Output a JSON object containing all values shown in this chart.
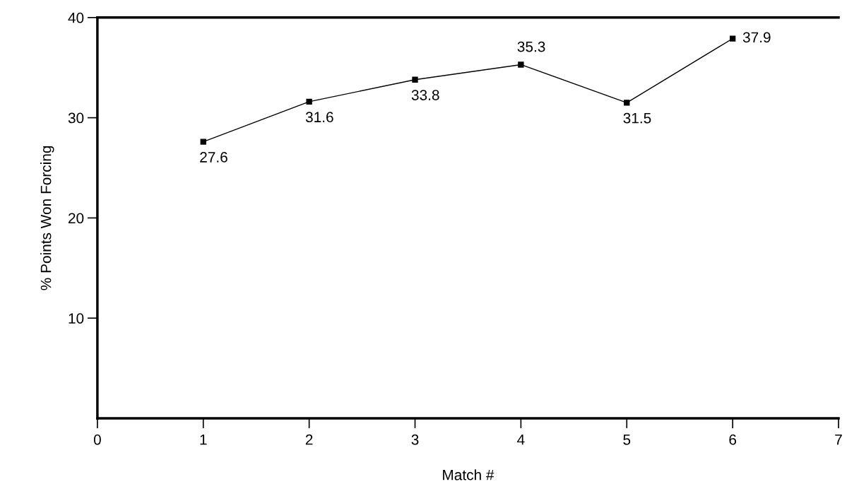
{
  "chart_data": {
    "type": "line",
    "xlabel": "Match #",
    "ylabel": "% Points Won Forcing",
    "x": [
      1,
      2,
      3,
      4,
      5,
      6
    ],
    "series": [
      {
        "color": "#000000",
        "values": [
          27.6,
          31.6,
          33.8,
          35.3,
          31.5,
          37.9
        ]
      }
    ],
    "xlim": [
      0,
      7
    ],
    "xticks": [
      0,
      1,
      2,
      3,
      4,
      5,
      6,
      7
    ],
    "ylim": [
      0,
      40
    ],
    "yticks": [
      10,
      20,
      30,
      40
    ],
    "data_labels": true,
    "marker": "square",
    "line_style": "solid",
    "grid": false,
    "legend": false
  }
}
